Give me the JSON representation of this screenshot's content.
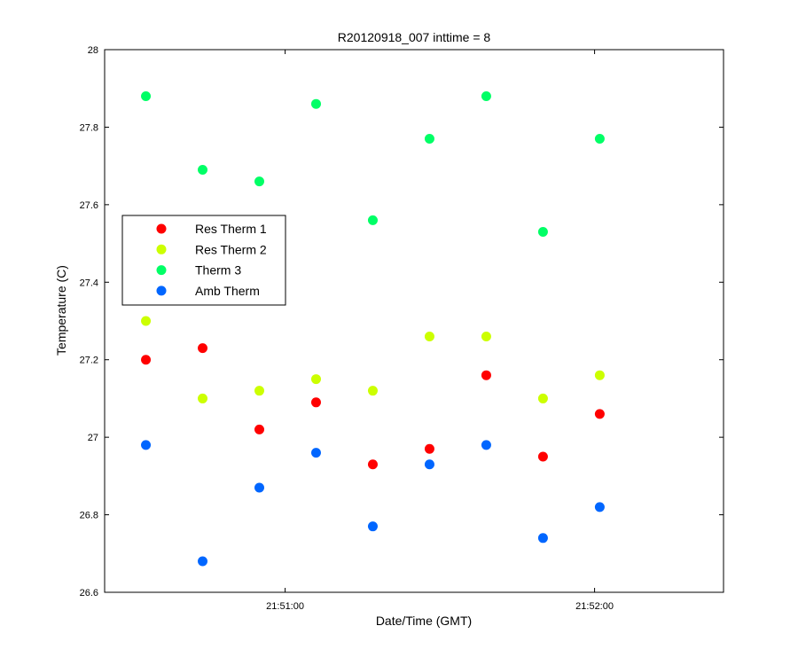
{
  "chart_data": {
    "type": "scatter",
    "title": "R20120918_007 inttime = 8",
    "xlabel": "Date/Time (GMT)",
    "ylabel": "Temperature (C)",
    "x_unit": "time of day (GMT)",
    "xlim": [
      "21:50:25",
      "21:52:25"
    ],
    "ylim": [
      26.6,
      28.0
    ],
    "x_ticks": [
      "21:51:00",
      "21:52:00"
    ],
    "y_ticks": [
      "26.6",
      "26.8",
      "27",
      "27.2",
      "27.4",
      "27.6",
      "27.8",
      "28"
    ],
    "x": [
      "21:50:33",
      "21:50:44",
      "21:50:55",
      "21:51:06",
      "21:51:17",
      "21:51:28",
      "21:51:39",
      "21:51:50",
      "21:52:01"
    ],
    "grid": false,
    "legend_position": "middle-left",
    "series": [
      {
        "name": "Res Therm 1",
        "color": "#ff0000",
        "values": [
          27.2,
          27.23,
          27.02,
          27.09,
          26.93,
          26.97,
          27.16,
          26.95,
          27.06
        ]
      },
      {
        "name": "Res Therm 2",
        "color": "#ccff00",
        "values": [
          27.3,
          27.1,
          27.12,
          27.15,
          27.12,
          27.26,
          27.26,
          27.1,
          27.16
        ]
      },
      {
        "name": "Therm 3",
        "color": "#00ff66",
        "values": [
          27.88,
          27.69,
          27.66,
          27.86,
          27.56,
          27.77,
          27.88,
          27.53,
          27.77
        ]
      },
      {
        "name": "Amb Therm",
        "color": "#0066ff",
        "values": [
          26.98,
          26.68,
          26.87,
          26.96,
          26.77,
          26.93,
          26.98,
          26.74,
          26.82
        ]
      }
    ]
  }
}
